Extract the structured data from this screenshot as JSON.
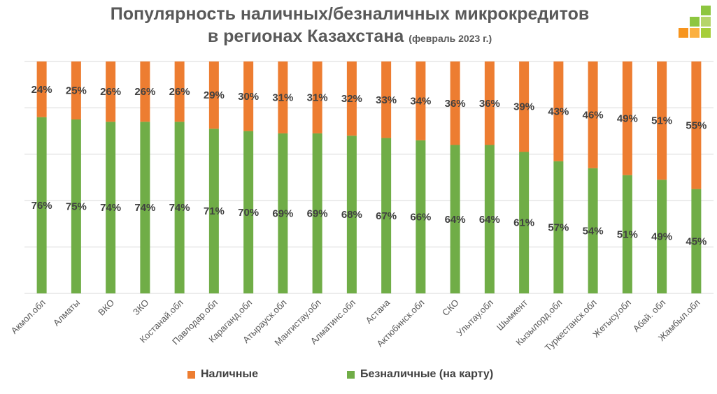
{
  "title": {
    "line1": "Популярность наличных/безналичных микрокредитов",
    "line2": "в регионах Казахстана",
    "subtitle": "(февраль 2023 г.)"
  },
  "colors": {
    "cash": "#ED7D31",
    "cashless": "#70AD47",
    "grid": "#D9D9D9",
    "label": "#404040",
    "axis_text": "#595959"
  },
  "legend": {
    "cash": "Наличные",
    "cashless": "Безналичные (на карту)"
  },
  "chart_data": {
    "type": "bar",
    "stacked": true,
    "categories": [
      "Акмол.обл",
      "Алматы",
      "ВКО",
      "ЗКО",
      "Костанай.обл",
      "Павлодар.обл",
      "Караганд.обл",
      "Атырауск.обл",
      "Мангистау.обл",
      "Алматинс.обл",
      "Астана",
      "Актюбинск.обл",
      "СКО",
      "Улытау.обл",
      "Шымкент",
      "Кызылорд.обл",
      "Туркестанск.обл",
      "Жетысу.обл",
      "Абай. обл",
      "Жамбыл.обл"
    ],
    "series": [
      {
        "name": "Безналичные (на карту)",
        "values": [
          76,
          75,
          74,
          74,
          74,
          71,
          70,
          69,
          69,
          68,
          67,
          66,
          64,
          64,
          61,
          57,
          54,
          51,
          49,
          45
        ],
        "labels": [
          "76%",
          "75%",
          "74%",
          "74%",
          "74%",
          "71%",
          "70%",
          "69%",
          "69%",
          "68%",
          "67%",
          "66%",
          "64%",
          "64%",
          "61%",
          "57%",
          "54%",
          "51%",
          "49%",
          "45%"
        ]
      },
      {
        "name": "Наличные",
        "values": [
          24,
          25,
          26,
          26,
          26,
          29,
          30,
          31,
          31,
          32,
          33,
          34,
          36,
          36,
          39,
          43,
          46,
          49,
          51,
          55
        ],
        "labels": [
          "24%",
          "25%",
          "26%",
          "26%",
          "26%",
          "29%",
          "30%",
          "31%",
          "31%",
          "32%",
          "33%",
          "34%",
          "36%",
          "36%",
          "39%",
          "43%",
          "46%",
          "49%",
          "51%",
          "55%"
        ]
      }
    ],
    "ylim": [
      0,
      100
    ],
    "grid": true,
    "legend_position": "bottom"
  }
}
